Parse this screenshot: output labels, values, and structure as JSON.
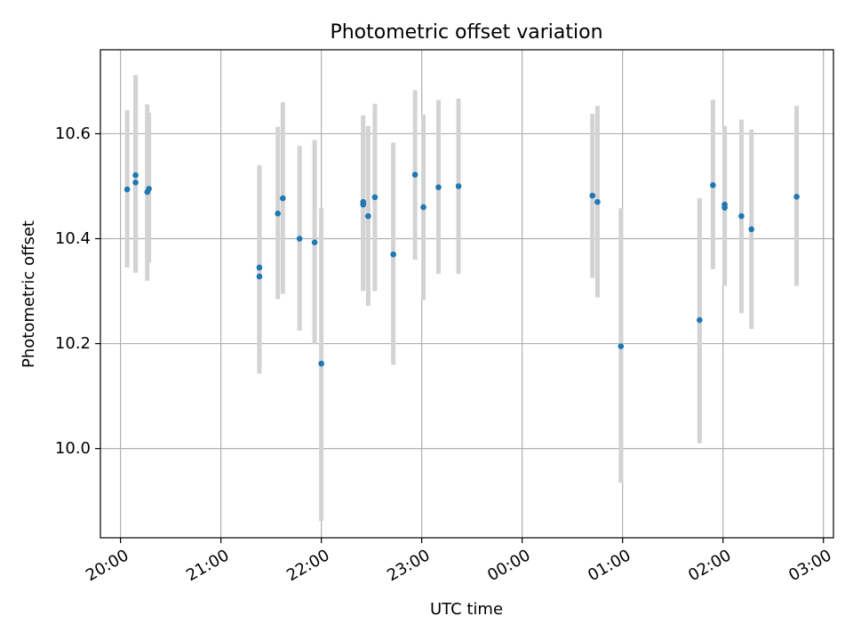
{
  "chart_data": {
    "type": "scatter",
    "title": "Photometric offset variation",
    "xlabel": "UTC time",
    "ylabel": "Photometric offset",
    "x_axis_kind": "time",
    "x_reference_date": "2000-01-01",
    "xlim": [
      "2000-01-01 19:48",
      "2000-01-02 03:06"
    ],
    "ylim": [
      9.83,
      10.76
    ],
    "x_ticks": [
      {
        "t": "2000-01-01 20:00",
        "label": "20:00"
      },
      {
        "t": "2000-01-01 21:00",
        "label": "21:00"
      },
      {
        "t": "2000-01-01 22:00",
        "label": "22:00"
      },
      {
        "t": "2000-01-01 23:00",
        "label": "23:00"
      },
      {
        "t": "2000-01-02 00:00",
        "label": "00:00"
      },
      {
        "t": "2000-01-02 01:00",
        "label": "01:00"
      },
      {
        "t": "2000-01-02 02:00",
        "label": "02:00"
      },
      {
        "t": "2000-01-02 03:00",
        "label": "03:00"
      }
    ],
    "y_ticks": [
      {
        "v": 10.0,
        "label": "10.0"
      },
      {
        "v": 10.2,
        "label": "10.2"
      },
      {
        "v": 10.4,
        "label": "10.4"
      },
      {
        "v": 10.6,
        "label": "10.6"
      }
    ],
    "grid": true,
    "point_color": "#1f77b4",
    "errorbar_color": "#d3d3d3",
    "points": [
      {
        "t": "2000-01-01 20:04",
        "y": 10.494,
        "lo": 10.345,
        "hi": 10.645
      },
      {
        "t": "2000-01-01 20:09",
        "y": 10.521,
        "lo": 10.335,
        "hi": 10.712
      },
      {
        "t": "2000-01-01 20:09",
        "y": 10.507,
        "lo": 10.355,
        "hi": 10.658
      },
      {
        "t": "2000-01-01 20:16",
        "y": 10.489,
        "lo": 10.32,
        "hi": 10.656
      },
      {
        "t": "2000-01-01 20:17",
        "y": 10.495,
        "lo": 10.355,
        "hi": 10.64
      },
      {
        "t": "2000-01-01 21:23",
        "y": 10.345,
        "lo": 10.16,
        "hi": 10.54
      },
      {
        "t": "2000-01-01 21:23",
        "y": 10.328,
        "lo": 10.143,
        "hi": 10.512
      },
      {
        "t": "2000-01-01 21:34",
        "y": 10.448,
        "lo": 10.285,
        "hi": 10.613
      },
      {
        "t": "2000-01-01 21:37",
        "y": 10.477,
        "lo": 10.295,
        "hi": 10.66
      },
      {
        "t": "2000-01-01 21:47",
        "y": 10.4,
        "lo": 10.225,
        "hi": 10.577
      },
      {
        "t": "2000-01-01 21:56",
        "y": 10.393,
        "lo": 10.2,
        "hi": 10.588
      },
      {
        "t": "2000-01-01 22:00",
        "y": 10.162,
        "lo": 9.862,
        "hi": 10.458
      },
      {
        "t": "2000-01-01 22:25",
        "y": 10.47,
        "lo": 10.31,
        "hi": 10.635
      },
      {
        "t": "2000-01-01 22:25",
        "y": 10.465,
        "lo": 10.3,
        "hi": 10.6
      },
      {
        "t": "2000-01-01 22:28",
        "y": 10.443,
        "lo": 10.272,
        "hi": 10.615
      },
      {
        "t": "2000-01-01 22:32",
        "y": 10.479,
        "lo": 10.3,
        "hi": 10.657
      },
      {
        "t": "2000-01-01 22:43",
        "y": 10.37,
        "lo": 10.16,
        "hi": 10.583
      },
      {
        "t": "2000-01-01 22:56",
        "y": 10.522,
        "lo": 10.36,
        "hi": 10.683
      },
      {
        "t": "2000-01-01 23:01",
        "y": 10.46,
        "lo": 10.283,
        "hi": 10.637
      },
      {
        "t": "2000-01-01 23:10",
        "y": 10.498,
        "lo": 10.333,
        "hi": 10.664
      },
      {
        "t": "2000-01-01 23:22",
        "y": 10.5,
        "lo": 10.333,
        "hi": 10.667
      },
      {
        "t": "2000-01-02 00:42",
        "y": 10.482,
        "lo": 10.325,
        "hi": 10.638
      },
      {
        "t": "2000-01-02 00:45",
        "y": 10.47,
        "lo": 10.288,
        "hi": 10.653
      },
      {
        "t": "2000-01-02 00:59",
        "y": 10.195,
        "lo": 9.935,
        "hi": 10.458
      },
      {
        "t": "2000-01-02 01:46",
        "y": 10.245,
        "lo": 10.01,
        "hi": 10.477
      },
      {
        "t": "2000-01-02 01:54",
        "y": 10.502,
        "lo": 10.342,
        "hi": 10.665
      },
      {
        "t": "2000-01-02 02:01",
        "y": 10.465,
        "lo": 10.31,
        "hi": 10.615
      },
      {
        "t": "2000-01-02 02:01",
        "y": 10.459,
        "lo": 10.31,
        "hi": 10.613
      },
      {
        "t": "2000-01-02 02:11",
        "y": 10.443,
        "lo": 10.258,
        "hi": 10.627
      },
      {
        "t": "2000-01-02 02:17",
        "y": 10.418,
        "lo": 10.228,
        "hi": 10.608
      },
      {
        "t": "2000-01-02 02:44",
        "y": 10.48,
        "lo": 10.31,
        "hi": 10.653
      }
    ]
  }
}
